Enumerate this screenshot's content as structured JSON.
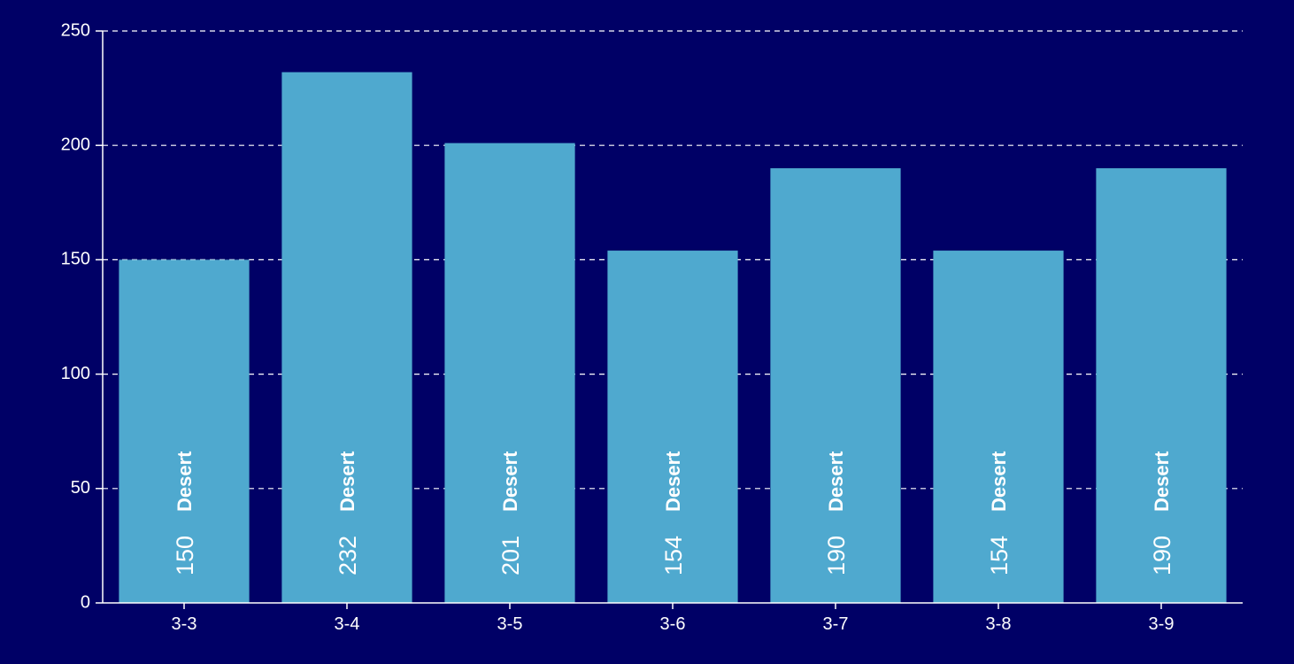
{
  "colors": {
    "background": "#000066",
    "bar": "#4fa9cf",
    "axis": "#ffffff",
    "grid": "#ffffff",
    "text": "#ffffff"
  },
  "chart_data": {
    "type": "bar",
    "title": "",
    "xlabel": "",
    "ylabel": "",
    "categories": [
      "3-3",
      "3-4",
      "3-5",
      "3-6",
      "3-7",
      "3-8",
      "3-9"
    ],
    "series": [
      {
        "name": "Desert",
        "values": [
          150,
          232,
          201,
          154,
          190,
          154,
          190
        ]
      }
    ],
    "ylim": [
      0,
      250
    ],
    "yticks": [
      0,
      50,
      100,
      150,
      200,
      250
    ],
    "grid": true,
    "grid_style": "dashed",
    "legend": "none",
    "bar_labels": "inside-bottom, rotated vertical, series name and value"
  }
}
